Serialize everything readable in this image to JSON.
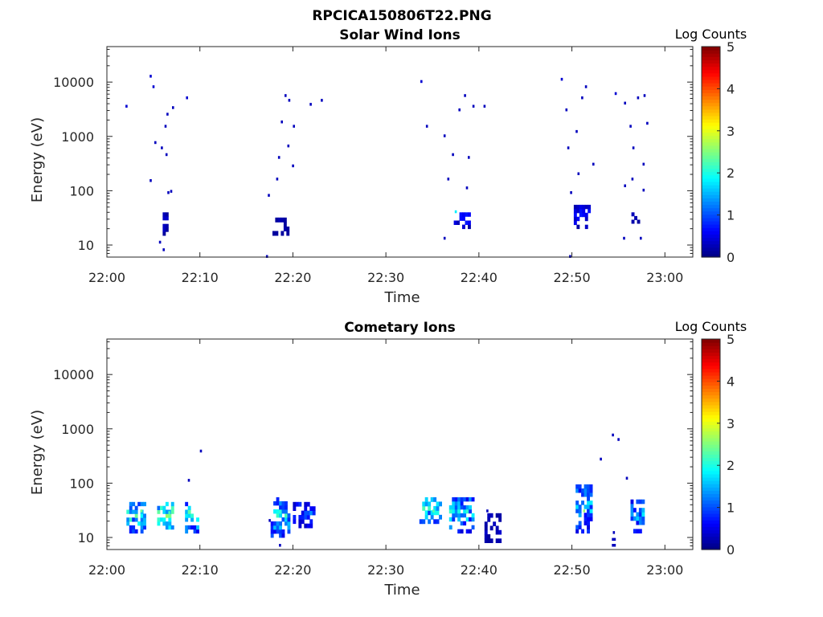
{
  "figure_title": "RPCICA150806T22.PNG",
  "colorbar": {
    "label": "Log Counts",
    "ticks": [
      "0",
      "1",
      "2",
      "3",
      "4",
      "5"
    ],
    "range": [
      0,
      5
    ],
    "colormap": "jet"
  },
  "chart_data": [
    {
      "type": "heatmap",
      "title": "Solar Wind Ions",
      "xlabel": "Time",
      "ylabel": "Energy (eV)",
      "x_ticks": [
        "22:00",
        "22:10",
        "22:20",
        "22:30",
        "22:40",
        "22:50",
        "23:00"
      ],
      "y_ticks": [
        "10",
        "100",
        "1000",
        "10000"
      ],
      "y_scale": "log",
      "xlim_minutes_after_2200": [
        0,
        63
      ],
      "ylim_eV": [
        6,
        45000
      ],
      "clusters": [
        {
          "t": [
            6.0,
            6.5
          ],
          "e": [
            15,
            40
          ],
          "v": 0.3
        },
        {
          "t": [
            17.8,
            19.6
          ],
          "e": [
            15,
            32
          ],
          "v": 0.2
        },
        {
          "t": [
            37.3,
            38.9
          ],
          "e": [
            20,
            40
          ],
          "v": 0.6
        },
        {
          "t": [
            50.2,
            51.7
          ],
          "e": [
            20,
            55
          ],
          "v": 0.5
        },
        {
          "t": [
            56.4,
            57.0
          ],
          "e": [
            25,
            40
          ],
          "v": 0.3
        }
      ],
      "pixels": [
        {
          "t": 2.0,
          "e": 3500,
          "v": 0.4
        },
        {
          "t": 4.6,
          "e": 12500,
          "v": 0.4
        },
        {
          "t": 4.9,
          "e": 8000,
          "v": 0.4
        },
        {
          "t": 4.6,
          "e": 150,
          "v": 0.3
        },
        {
          "t": 5.1,
          "e": 750,
          "v": 0.3
        },
        {
          "t": 5.8,
          "e": 600,
          "v": 0.3
        },
        {
          "t": 6.2,
          "e": 1500,
          "v": 0.3
        },
        {
          "t": 6.4,
          "e": 2500,
          "v": 0.3
        },
        {
          "t": 7.0,
          "e": 3300,
          "v": 0.3
        },
        {
          "t": 6.3,
          "e": 450,
          "v": 0.3
        },
        {
          "t": 6.5,
          "e": 90,
          "v": 0.3
        },
        {
          "t": 6.8,
          "e": 95,
          "v": 0.3
        },
        {
          "t": 8.5,
          "e": 5000,
          "v": 0.4
        },
        {
          "t": 6.0,
          "e": 8,
          "v": 0.3
        },
        {
          "t": 5.6,
          "e": 11,
          "v": 0.3
        },
        {
          "t": 17.3,
          "e": 80,
          "v": 0.3
        },
        {
          "t": 18.2,
          "e": 160,
          "v": 0.3
        },
        {
          "t": 18.7,
          "e": 1800,
          "v": 0.3
        },
        {
          "t": 19.1,
          "e": 5500,
          "v": 0.3
        },
        {
          "t": 19.5,
          "e": 4500,
          "v": 0.3
        },
        {
          "t": 20.0,
          "e": 1500,
          "v": 0.3
        },
        {
          "t": 21.8,
          "e": 3800,
          "v": 0.3
        },
        {
          "t": 23.0,
          "e": 4500,
          "v": 0.3
        },
        {
          "t": 18.4,
          "e": 400,
          "v": 0.3
        },
        {
          "t": 19.4,
          "e": 650,
          "v": 0.3
        },
        {
          "t": 19.9,
          "e": 280,
          "v": 0.3
        },
        {
          "t": 33.7,
          "e": 10000,
          "v": 0.4
        },
        {
          "t": 34.3,
          "e": 1500,
          "v": 0.3
        },
        {
          "t": 36.2,
          "e": 1000,
          "v": 0.3
        },
        {
          "t": 37.8,
          "e": 3000,
          "v": 0.3
        },
        {
          "t": 38.4,
          "e": 5500,
          "v": 0.3
        },
        {
          "t": 39.3,
          "e": 3500,
          "v": 0.3
        },
        {
          "t": 40.5,
          "e": 3500,
          "v": 0.3
        },
        {
          "t": 36.6,
          "e": 160,
          "v": 0.3
        },
        {
          "t": 37.1,
          "e": 450,
          "v": 0.3
        },
        {
          "t": 38.8,
          "e": 400,
          "v": 0.3
        },
        {
          "t": 38.6,
          "e": 110,
          "v": 0.3
        },
        {
          "t": 36.2,
          "e": 13,
          "v": 0.3
        },
        {
          "t": 48.8,
          "e": 11000,
          "v": 0.4
        },
        {
          "t": 49.3,
          "e": 3000,
          "v": 0.3
        },
        {
          "t": 50.4,
          "e": 1200,
          "v": 0.3
        },
        {
          "t": 51.0,
          "e": 5000,
          "v": 0.3
        },
        {
          "t": 51.4,
          "e": 8000,
          "v": 0.3
        },
        {
          "t": 49.5,
          "e": 600,
          "v": 0.3
        },
        {
          "t": 50.6,
          "e": 200,
          "v": 0.3
        },
        {
          "t": 52.2,
          "e": 300,
          "v": 0.3
        },
        {
          "t": 49.8,
          "e": 90,
          "v": 0.3
        },
        {
          "t": 54.6,
          "e": 6000,
          "v": 0.4
        },
        {
          "t": 55.6,
          "e": 4000,
          "v": 0.3
        },
        {
          "t": 56.2,
          "e": 1500,
          "v": 0.3
        },
        {
          "t": 57.0,
          "e": 5000,
          "v": 0.3
        },
        {
          "t": 57.7,
          "e": 5500,
          "v": 0.3
        },
        {
          "t": 58.0,
          "e": 1700,
          "v": 0.3
        },
        {
          "t": 56.5,
          "e": 600,
          "v": 0.3
        },
        {
          "t": 57.6,
          "e": 300,
          "v": 0.3
        },
        {
          "t": 55.6,
          "e": 120,
          "v": 0.3
        },
        {
          "t": 56.4,
          "e": 160,
          "v": 0.3
        },
        {
          "t": 57.6,
          "e": 100,
          "v": 0.3
        },
        {
          "t": 55.5,
          "e": 13,
          "v": 0.3
        },
        {
          "t": 57.3,
          "e": 13,
          "v": 0.3
        },
        {
          "t": 17.1,
          "e": 6,
          "v": 0.3
        },
        {
          "t": 49.7,
          "e": 6,
          "v": 0.3
        },
        {
          "t": 37.4,
          "e": 40,
          "v": 1.8
        }
      ]
    },
    {
      "type": "heatmap",
      "title": "Cometary Ions",
      "xlabel": "Time",
      "ylabel": "Energy (eV)",
      "x_ticks": [
        "22:00",
        "22:10",
        "22:20",
        "22:30",
        "22:40",
        "22:50",
        "23:00"
      ],
      "y_ticks": [
        "10",
        "100",
        "1000",
        "10000"
      ],
      "y_scale": "log",
      "xlim_minutes_after_2200": [
        0,
        63
      ],
      "ylim_eV": [
        6,
        45000
      ],
      "clusters": [
        {
          "t": [
            2.1,
            4.1
          ],
          "e": [
            12,
            45
          ],
          "v": 1.5
        },
        {
          "t": [
            5.4,
            7.1
          ],
          "e": [
            12,
            45
          ],
          "v": 1.8
        },
        {
          "t": [
            8.4,
            9.8
          ],
          "e": [
            12,
            45
          ],
          "v": 1.6
        },
        {
          "t": [
            17.6,
            19.6
          ],
          "e": [
            10,
            55
          ],
          "v": 1.4
        },
        {
          "t": [
            20.0,
            22.4
          ],
          "e": [
            15,
            45
          ],
          "v": 0.8
        },
        {
          "t": [
            33.6,
            35.9
          ],
          "e": [
            18,
            55
          ],
          "v": 1.5
        },
        {
          "t": [
            36.8,
            39.2
          ],
          "e": [
            12,
            55
          ],
          "v": 1.4
        },
        {
          "t": [
            40.6,
            42.1
          ],
          "e": [
            8,
            28
          ],
          "v": 0.3
        },
        {
          "t": [
            50.4,
            52.1
          ],
          "e": [
            12,
            95
          ],
          "v": 1.2
        },
        {
          "t": [
            56.3,
            57.7
          ],
          "e": [
            12,
            50
          ],
          "v": 1.2
        }
      ],
      "pixels": [
        {
          "t": 8.7,
          "e": 110,
          "v": 0.3
        },
        {
          "t": 10.0,
          "e": 380,
          "v": 0.3
        },
        {
          "t": 18.5,
          "e": 7,
          "v": 0.3
        },
        {
          "t": 53.0,
          "e": 270,
          "v": 0.3
        },
        {
          "t": 54.3,
          "e": 750,
          "v": 0.3
        },
        {
          "t": 54.9,
          "e": 620,
          "v": 0.3
        },
        {
          "t": 55.8,
          "e": 120,
          "v": 0.3
        },
        {
          "t": 54.3,
          "e": 7,
          "v": 0.3
        },
        {
          "t": 54.5,
          "e": 7,
          "v": 0.3
        },
        {
          "t": 54.3,
          "e": 9,
          "v": 0.3
        },
        {
          "t": 54.5,
          "e": 9,
          "v": 0.3
        },
        {
          "t": 54.4,
          "e": 12,
          "v": 0.3
        },
        {
          "t": 17.4,
          "e": 20,
          "v": 0.3
        },
        {
          "t": 40.8,
          "e": 30,
          "v": 0.3
        },
        {
          "t": 3.6,
          "e": 30,
          "v": 2.4
        },
        {
          "t": 51.2,
          "e": 30,
          "v": 2.6
        },
        {
          "t": 35.0,
          "e": 30,
          "v": 2.3
        },
        {
          "t": 6.6,
          "e": 28,
          "v": 2.2
        }
      ]
    }
  ]
}
